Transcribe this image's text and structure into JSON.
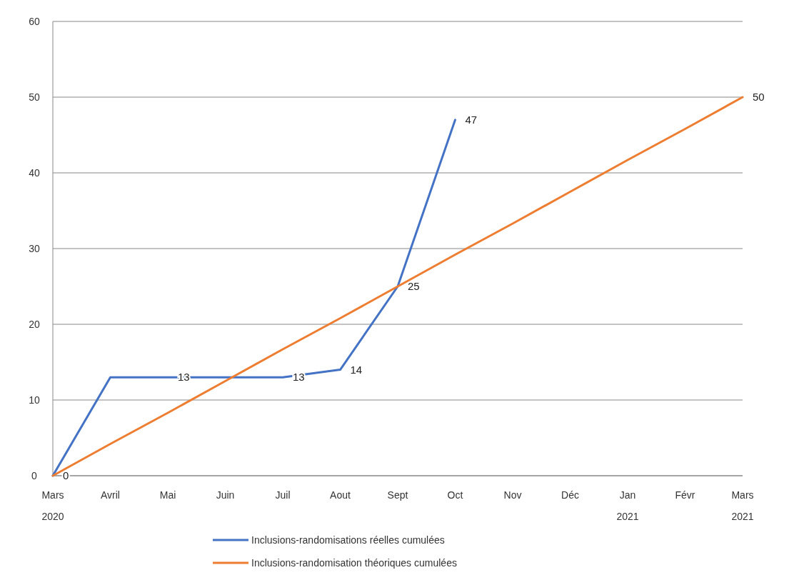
{
  "chart_data": {
    "type": "line",
    "categories": [
      "Mars\n2020",
      "Avril",
      "Mai",
      "Juin",
      "Juil",
      "Aout",
      "Sept",
      "Oct",
      "Nov",
      "Déc",
      "Jan\n2021",
      "Févr",
      "Mars\n2021"
    ],
    "series": [
      {
        "name": "Inclusions-randomisations réelles cumulées",
        "color": "#4472c4",
        "values": [
          0,
          13,
          13,
          13,
          13,
          14,
          25,
          47,
          null,
          null,
          null,
          null,
          null
        ],
        "value_labels": [
          "0",
          null,
          "13",
          null,
          "13",
          "14",
          "25",
          "47",
          null,
          null,
          null,
          null,
          null
        ]
      },
      {
        "name": "Inclusions-randomisation théoriques cumulées",
        "color": "#ed7d31",
        "values": [
          0,
          4.2,
          8.3,
          12.5,
          16.7,
          20.8,
          25,
          29.2,
          33.3,
          37.5,
          41.7,
          45.8,
          50
        ],
        "value_labels": [
          null,
          null,
          null,
          null,
          null,
          null,
          null,
          null,
          null,
          null,
          null,
          null,
          "50"
        ]
      }
    ],
    "ylim": [
      0,
      60
    ],
    "yticks": [
      0,
      10,
      20,
      30,
      40,
      50,
      60
    ],
    "grid": "y",
    "legend": "bottom",
    "marker": "none",
    "line_style": "solid"
  }
}
